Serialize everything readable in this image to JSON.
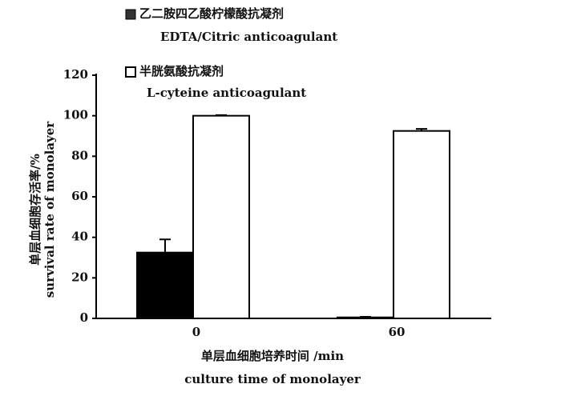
{
  "chart_data": {
    "type": "bar",
    "categories": [
      "0",
      "60"
    ],
    "series": [
      {
        "name": "乙二胺四乙酸柠檬酸抗凝剂",
        "name_en": "EDTA/Citric anticoagulant",
        "color": "#000000",
        "values": [
          32.5,
          0.5
        ],
        "errors": [
          6.5,
          0.3
        ]
      },
      {
        "name": "半胱氨酸抗凝剂",
        "name_en": "L-cyteine anticoagulant",
        "color": "#ffffff",
        "values": [
          100,
          92.5
        ],
        "errors": [
          0.3,
          1
        ]
      }
    ],
    "ylim": [
      0,
      120
    ],
    "yticks": [
      0,
      20,
      40,
      60,
      80,
      100,
      120
    ],
    "y_label": "单层血细胞存活率/%",
    "y_label_en": "survival rate of monolayer",
    "x_label": "单层血细胞培养时间 /min",
    "x_label_en": "culture time of monolayer"
  }
}
